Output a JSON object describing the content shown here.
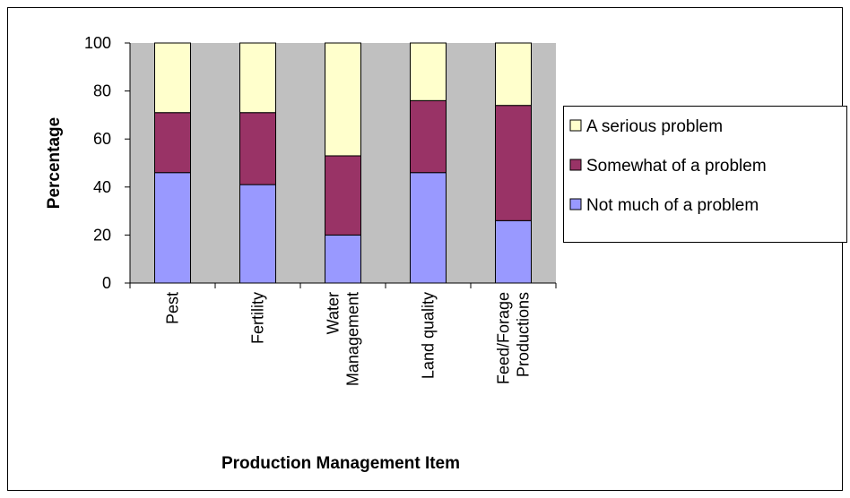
{
  "chart_data": {
    "type": "stacked_bar",
    "x_label": "Production Management Item",
    "y_label": "Percentage",
    "categories": [
      "Pest",
      "Fertility",
      "Water\nManagement",
      "Land quality",
      "Feed/Forage\nProductions"
    ],
    "series": [
      {
        "name": "Not much of a problem",
        "color": "#9999ff",
        "values": [
          46,
          41,
          20,
          46,
          26
        ]
      },
      {
        "name": "Somewhat of a problem",
        "color": "#993366",
        "values": [
          25,
          30,
          33,
          30,
          48
        ]
      },
      {
        "name": "A serious problem",
        "color": "#ffffcc",
        "values": [
          29,
          29,
          47,
          24,
          26
        ]
      }
    ],
    "ylim": [
      0,
      100
    ],
    "yticks": [
      0,
      20,
      40,
      60,
      80,
      100
    ],
    "legend": "right",
    "plot_background": "#c0c0c0"
  }
}
